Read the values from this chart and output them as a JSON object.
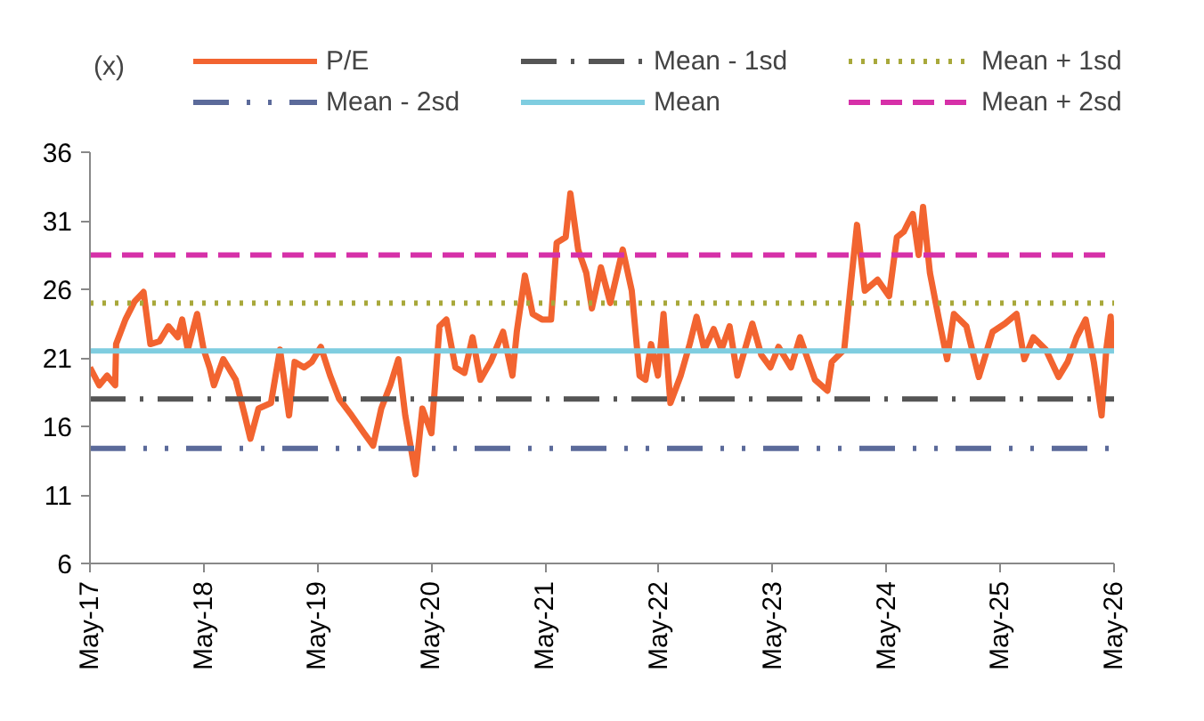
{
  "chart_data": {
    "type": "line",
    "ylabel": "(x)",
    "xlim": [
      "2017-05",
      "2026-05"
    ],
    "xticks": [
      {
        "value": "2017-05",
        "label": "May-17"
      },
      {
        "value": "2018-05",
        "label": "May-18"
      },
      {
        "value": "2019-05",
        "label": "May-19"
      },
      {
        "value": "2020-05",
        "label": "May-20"
      },
      {
        "value": "2021-05",
        "label": "May-21"
      },
      {
        "value": "2022-05",
        "label": "May-22"
      },
      {
        "value": "2023-05",
        "label": "May-23"
      },
      {
        "value": "2024-05",
        "label": "May-24"
      },
      {
        "value": "2025-05",
        "label": "May-25"
      },
      {
        "value": "2026-05",
        "label": "May-26"
      }
    ],
    "ylim": [
      6,
      36
    ],
    "yticks": [
      6,
      11,
      16,
      21,
      26,
      31,
      36
    ],
    "grid": false,
    "legend": "top",
    "series": [
      {
        "name": "P/E",
        "color": "#f26430",
        "line_style": "solid",
        "x": [
          "2017-05-01",
          "2017-05-31",
          "2017-06-25",
          "2017-07-21",
          "2017-07-24",
          "2017-08-23",
          "2017-09-21",
          "2017-10-20",
          "2017-11-11",
          "2017-12-10",
          "2018-01-08",
          "2018-02-07",
          "2018-02-21",
          "2018-03-11",
          "2018-04-10",
          "2018-05-01",
          "2018-05-20",
          "2018-06-03",
          "2018-07-03",
          "2018-08-12",
          "2018-09-10",
          "2018-09-28",
          "2018-10-24",
          "2018-12-03",
          "2019-01-01",
          "2019-01-30",
          "2019-02-17",
          "2019-03-19",
          "2019-04-13",
          "2019-05-12",
          "2019-06-11",
          "2019-07-10",
          "2019-08-19",
          "2019-09-28",
          "2019-10-27",
          "2019-11-22",
          "2019-12-21",
          "2020-01-16",
          "2020-02-07",
          "2020-03-11",
          "2020-04-02",
          "2020-05-01",
          "2020-05-27",
          "2020-06-18",
          "2020-07-17",
          "2020-08-15",
          "2020-09-10",
          "2020-10-05",
          "2020-11-07",
          "2020-12-17",
          "2021-01-16",
          "2021-01-30",
          "2021-02-25",
          "2021-03-22",
          "2021-04-21",
          "2021-05-20",
          "2021-06-07",
          "2021-07-06",
          "2021-07-21",
          "2021-08-15",
          "2021-09-10",
          "2021-09-28",
          "2021-10-27",
          "2021-11-26",
          "2022-01-05",
          "2022-02-03",
          "2022-02-28",
          "2022-03-19",
          "2022-04-06",
          "2022-04-28",
          "2022-05-16",
          "2022-06-07",
          "2022-07-10",
          "2022-08-08",
          "2022-08-30",
          "2022-09-24",
          "2022-10-24",
          "2022-11-18",
          "2022-12-14",
          "2023-01-08",
          "2023-02-25",
          "2023-03-26",
          "2023-04-24",
          "2023-05-20",
          "2023-06-29",
          "2023-07-28",
          "2023-09-14",
          "2023-10-24",
          "2023-11-07",
          "2023-12-17",
          "2024-01-05",
          "2024-01-27",
          "2024-02-21",
          "2024-04-02",
          "2024-05-09",
          "2024-06-03",
          "2024-06-25",
          "2024-07-24",
          "2024-08-12",
          "2024-08-26",
          "2024-09-17",
          "2024-10-16",
          "2024-11-11",
          "2024-12-03",
          "2025-01-12",
          "2025-02-21",
          "2025-04-06",
          "2025-05-16",
          "2025-06-22",
          "2025-07-17",
          "2025-08-15",
          "2025-09-24",
          "2025-11-04",
          "2025-12-03",
          "2026-01-01",
          "2026-01-30",
          "2026-02-25",
          "2026-03-22",
          "2026-04-06",
          "2026-04-20",
          "2026-04-26",
          "2026-05-01"
        ],
        "values": [
          20.3,
          19.0,
          19.7,
          19.0,
          22.0,
          23.8,
          25.1,
          25.8,
          22.0,
          22.2,
          23.3,
          22.5,
          23.8,
          21.6,
          24.2,
          21.6,
          20.3,
          19.0,
          20.9,
          19.4,
          16.8,
          15.1,
          17.3,
          17.7,
          21.6,
          16.8,
          20.7,
          20.3,
          20.7,
          21.8,
          19.7,
          18.0,
          16.8,
          15.5,
          14.6,
          17.3,
          19.0,
          20.9,
          16.8,
          12.5,
          17.3,
          15.5,
          23.3,
          23.8,
          20.3,
          19.9,
          22.5,
          19.4,
          20.7,
          22.9,
          19.7,
          22.9,
          27.0,
          24.2,
          23.8,
          23.8,
          29.4,
          29.8,
          33.0,
          28.9,
          27.2,
          24.6,
          27.6,
          25.0,
          28.9,
          25.9,
          19.7,
          19.4,
          22.0,
          19.7,
          24.2,
          17.7,
          19.7,
          22.0,
          24.0,
          21.6,
          23.1,
          21.6,
          23.3,
          19.7,
          23.5,
          21.2,
          20.3,
          21.8,
          20.3,
          22.5,
          19.4,
          18.6,
          20.7,
          21.6,
          25.9,
          30.7,
          25.9,
          26.7,
          25.5,
          29.8,
          30.2,
          31.5,
          28.5,
          32.0,
          27.2,
          23.8,
          20.9,
          24.2,
          23.3,
          19.6,
          22.9,
          23.5,
          24.2,
          20.9,
          22.5,
          21.6,
          19.6,
          20.7,
          22.5,
          23.8,
          20.7,
          16.8,
          21.6,
          24.0,
          21.6,
          21.6
        ]
      },
      {
        "name": "Mean - 2sd",
        "color": "#5b6a9a",
        "line_style": "dashdotdot",
        "x": [
          "2017-05",
          "2026-05"
        ],
        "values": [
          14.4,
          14.4
        ]
      },
      {
        "name": "Mean - 1sd",
        "color": "#555555",
        "line_style": "dashdot",
        "x": [
          "2017-05",
          "2026-05"
        ],
        "values": [
          18.0,
          18.0
        ]
      },
      {
        "name": "Mean",
        "color": "#7fcde0",
        "line_style": "solid",
        "x": [
          "2017-05",
          "2026-05"
        ],
        "values": [
          21.5,
          21.5
        ]
      },
      {
        "name": "Mean + 1sd",
        "color": "#a8a83a",
        "line_style": "dotted",
        "x": [
          "2017-05",
          "2026-05"
        ],
        "values": [
          25.0,
          25.0
        ]
      },
      {
        "name": "Mean + 2sd",
        "color": "#d630a8",
        "line_style": "dashed",
        "x": [
          "2017-05",
          "2026-05"
        ],
        "values": [
          28.5,
          28.5
        ]
      }
    ]
  }
}
